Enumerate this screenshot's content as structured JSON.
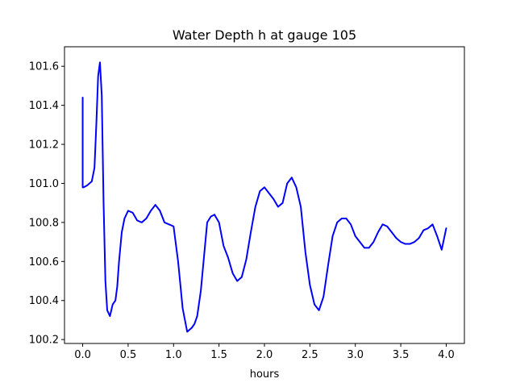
{
  "chart_data": {
    "type": "line",
    "title": "Water Depth h at gauge 105",
    "xlabel": "hours",
    "ylabel": "",
    "xlim": [
      -0.2,
      4.2
    ],
    "ylim": [
      100.18,
      101.7
    ],
    "xticks": [
      0.0,
      0.5,
      1.0,
      1.5,
      2.0,
      2.5,
      3.0,
      3.5,
      4.0
    ],
    "xtick_labels": [
      "0.0",
      "0.5",
      "1.0",
      "1.5",
      "2.0",
      "2.5",
      "3.0",
      "3.5",
      "4.0"
    ],
    "yticks": [
      100.2,
      100.4,
      100.6,
      100.8,
      101.0,
      101.2,
      101.4,
      101.6
    ],
    "ytick_labels": [
      "100.2",
      "100.4",
      "100.6",
      "100.8",
      "101.0",
      "101.2",
      "101.4",
      "101.6"
    ],
    "grid": false,
    "series": [
      {
        "color": "#0000ff",
        "x": [
          0.0,
          0.0,
          0.01,
          0.05,
          0.1,
          0.13,
          0.15,
          0.17,
          0.19,
          0.21,
          0.23,
          0.25,
          0.27,
          0.3,
          0.33,
          0.36,
          0.38,
          0.4,
          0.43,
          0.46,
          0.5,
          0.55,
          0.6,
          0.65,
          0.7,
          0.75,
          0.8,
          0.85,
          0.9,
          0.95,
          1.0,
          1.05,
          1.1,
          1.15,
          1.2,
          1.23,
          1.26,
          1.3,
          1.33,
          1.37,
          1.41,
          1.45,
          1.5,
          1.55,
          1.6,
          1.65,
          1.7,
          1.75,
          1.8,
          1.85,
          1.9,
          1.95,
          2.0,
          2.05,
          2.1,
          2.15,
          2.2,
          2.25,
          2.3,
          2.35,
          2.4,
          2.45,
          2.5,
          2.55,
          2.6,
          2.65,
          2.7,
          2.75,
          2.8,
          2.85,
          2.9,
          2.95,
          3.0,
          3.05,
          3.1,
          3.15,
          3.2,
          3.25,
          3.3,
          3.35,
          3.4,
          3.45,
          3.5,
          3.55,
          3.6,
          3.65,
          3.7,
          3.75,
          3.8,
          3.85,
          3.9,
          3.95,
          4.0
        ],
        "y": [
          101.44,
          100.98,
          100.98,
          100.99,
          101.01,
          101.08,
          101.3,
          101.55,
          101.62,
          101.45,
          100.9,
          100.5,
          100.35,
          100.32,
          100.38,
          100.4,
          100.47,
          100.6,
          100.75,
          100.82,
          100.86,
          100.85,
          100.81,
          100.8,
          100.82,
          100.86,
          100.89,
          100.86,
          100.8,
          100.79,
          100.78,
          100.6,
          100.36,
          100.24,
          100.26,
          100.28,
          100.32,
          100.45,
          100.6,
          100.8,
          100.83,
          100.84,
          100.8,
          100.68,
          100.62,
          100.54,
          100.5,
          100.52,
          100.61,
          100.75,
          100.88,
          100.96,
          100.98,
          100.95,
          100.92,
          100.88,
          100.9,
          101.0,
          101.03,
          100.98,
          100.88,
          100.65,
          100.48,
          100.38,
          100.35,
          100.42,
          100.58,
          100.73,
          100.8,
          100.82,
          100.82,
          100.79,
          100.73,
          100.7,
          100.67,
          100.67,
          100.7,
          100.75,
          100.79,
          100.78,
          100.75,
          100.72,
          100.7,
          100.69,
          100.69,
          100.7,
          100.72,
          100.76,
          100.77,
          100.79,
          100.73,
          100.66,
          100.77
        ]
      }
    ]
  }
}
